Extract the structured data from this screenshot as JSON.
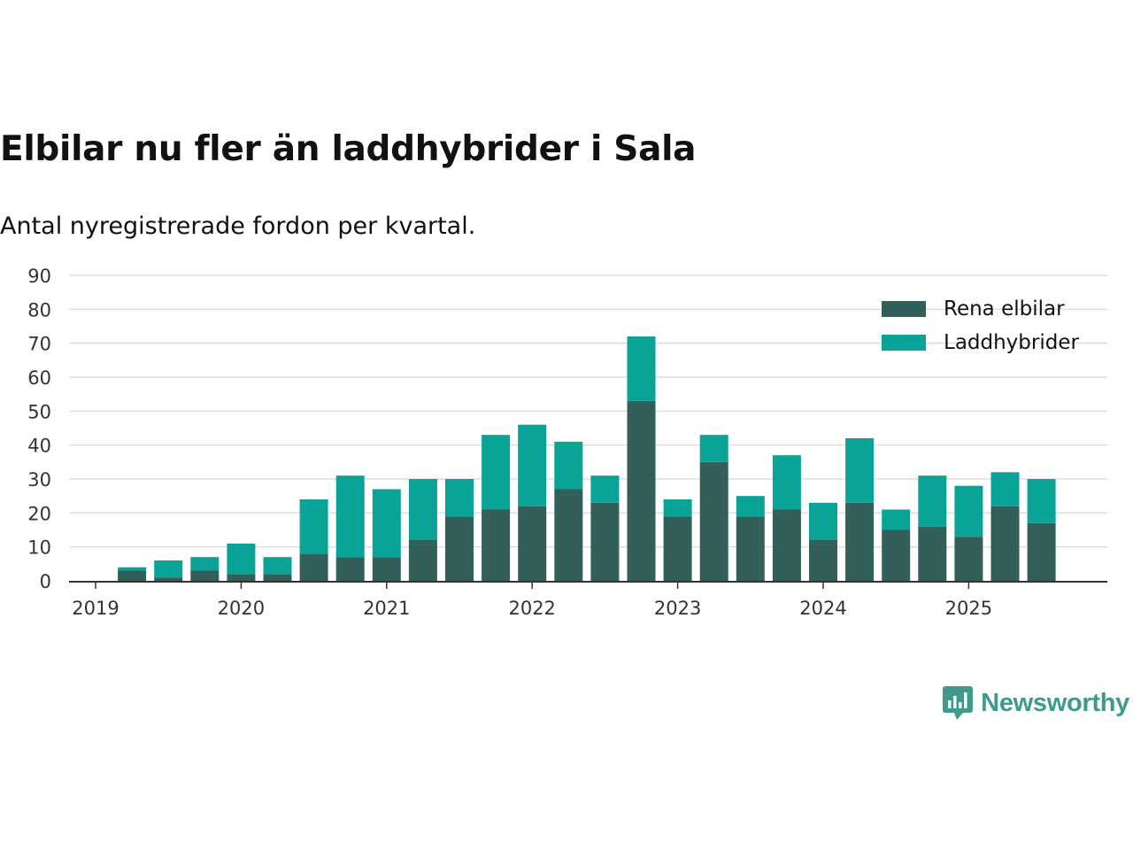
{
  "title": "Elbilar nu fler än laddhybrider i Sala",
  "subtitle": "Antal nyregistrerade fordon per kvartal.",
  "brand": {
    "name": "Newsworthy",
    "icon": "newsworthy-logo-icon",
    "color": "#3f9a8c"
  },
  "colors": {
    "rena_elbilar": "#335f5a",
    "laddhybrider": "#0aa398",
    "grid": "#dddddd",
    "axis": "#333333"
  },
  "chart_data": {
    "type": "bar",
    "stacked": true,
    "title": "Elbilar nu fler än laddhybrider i Sala",
    "subtitle": "Antal nyregistrerade fordon per kvartal.",
    "xlabel": "",
    "ylabel": "",
    "ylim": [
      0,
      90
    ],
    "yticks": [
      0,
      10,
      20,
      30,
      40,
      50,
      60,
      70,
      80,
      90
    ],
    "xticks": [
      "2019",
      "2020",
      "2021",
      "2022",
      "2023",
      "2024",
      "2025"
    ],
    "grid": true,
    "legend_position": "top-right",
    "categories": [
      "2019 Q1",
      "2019 Q2",
      "2019 Q3",
      "2019 Q4",
      "2020 Q1",
      "2020 Q2",
      "2020 Q3",
      "2020 Q4",
      "2021 Q1",
      "2021 Q2",
      "2021 Q3",
      "2021 Q4",
      "2022 Q1",
      "2022 Q2",
      "2022 Q3",
      "2022 Q4",
      "2023 Q1",
      "2023 Q2",
      "2023 Q3",
      "2023 Q4",
      "2024 Q1",
      "2024 Q2",
      "2024 Q3",
      "2024 Q4",
      "2025 Q1",
      "2025 Q2",
      "2025 Q3"
    ],
    "series": [
      {
        "name": "Rena elbilar",
        "color": "#335f5a",
        "values": [
          0,
          3,
          1,
          3,
          2,
          2,
          8,
          7,
          7,
          12,
          19,
          21,
          22,
          27,
          23,
          53,
          19,
          35,
          19,
          21,
          12,
          23,
          15,
          16,
          13,
          22,
          17
        ]
      },
      {
        "name": "Laddhybrider",
        "color": "#0aa398",
        "values": [
          0,
          1,
          5,
          4,
          9,
          5,
          16,
          24,
          20,
          18,
          11,
          22,
          24,
          14,
          8,
          19,
          5,
          8,
          6,
          16,
          11,
          19,
          6,
          15,
          15,
          10,
          13
        ]
      }
    ]
  }
}
